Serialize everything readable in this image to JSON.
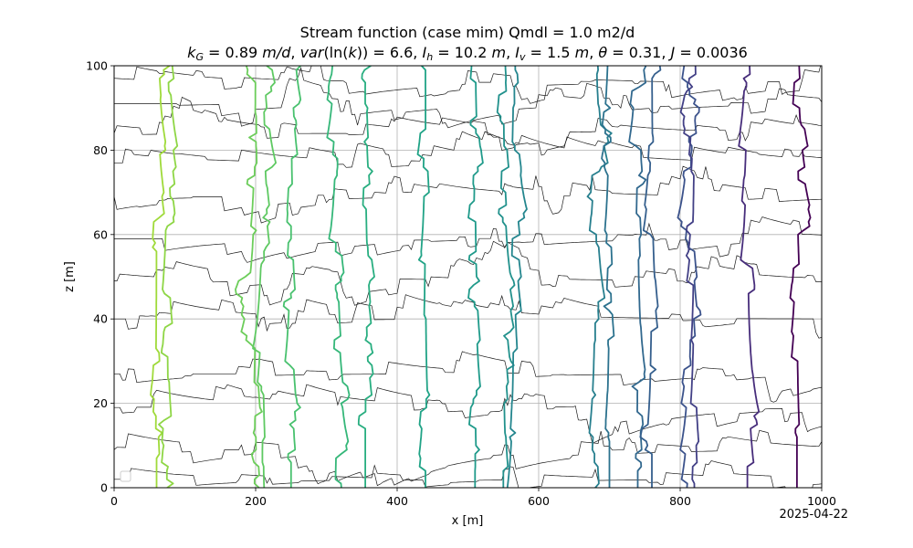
{
  "chart_data": {
    "type": "line",
    "title": "Stream function (case mim) Qmdl = 1.0 m2/d",
    "subtitle": {
      "kG": "0.89",
      "var_ln_k": "6.6",
      "Ih": "10.2",
      "Iv": "1.5",
      "theta": "0.31",
      "J": "0.0036",
      "unit_per_day": "m/d",
      "unit_m": "m"
    },
    "xlabel": "x [m]",
    "ylabel": "z [m]",
    "xlim": [
      0,
      1000
    ],
    "ylim": [
      0,
      100
    ],
    "x_ticks": [
      0,
      200,
      400,
      600,
      800,
      1000
    ],
    "y_ticks": [
      0,
      20,
      40,
      60,
      80,
      100
    ],
    "grid": true,
    "legend": "lower-left (empty)",
    "date_stamp": "2025-04-22",
    "colormap": "viridis",
    "streamlines_x_at_z0": [
      60,
      75,
      200,
      210,
      250,
      315,
      355,
      440,
      510,
      550,
      565,
      680,
      700,
      740,
      760,
      815,
      820,
      895,
      965
    ],
    "streamline_colors": [
      "#9fda3a",
      "#8ed645",
      "#6ccd5a",
      "#5ec962",
      "#48c16e",
      "#35b779",
      "#28ae80",
      "#20a386",
      "#1f9a8a",
      "#21918c",
      "#24868e",
      "#277f8e",
      "#2c728e",
      "#31688e",
      "#355f8d",
      "#3b528b",
      "#424086",
      "#472d7b",
      "#440154"
    ],
    "hydraulic_head_lines_z_at_x0": [
      2,
      9,
      19,
      27,
      40,
      49,
      59,
      69,
      77,
      84,
      91,
      96
    ]
  }
}
